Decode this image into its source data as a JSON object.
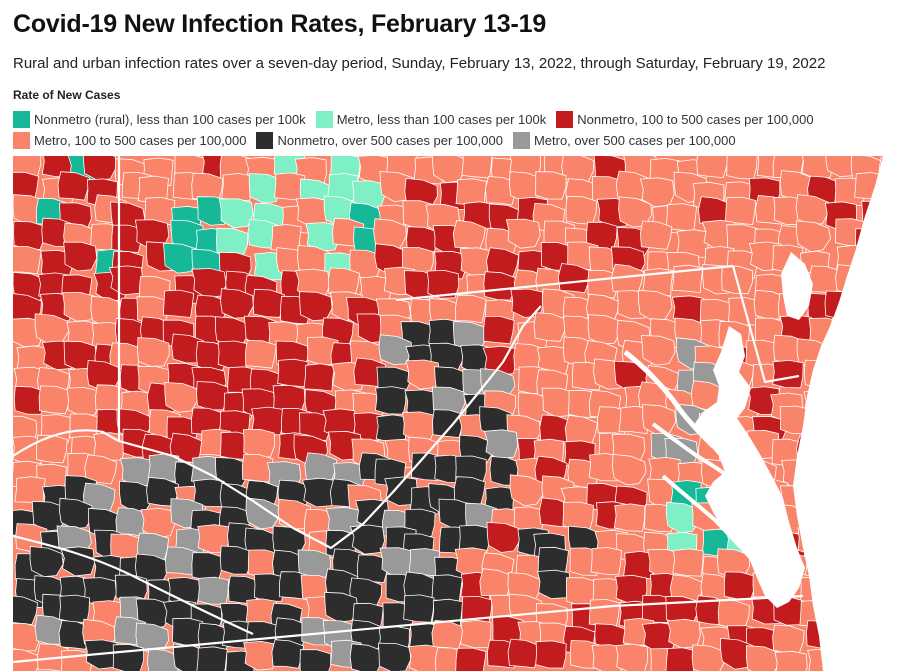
{
  "title": "Covid-19 New Infection Rates, February 13-19",
  "subtitle": "Rural and urban infection rates over a seven-day period, Sunday, February 13, 2022, through Saturday, February 19, 2022",
  "legend": {
    "title": "Rate of New Cases",
    "items": [
      {
        "label": "Nonmetro (rural), less than 100 cases per 100k",
        "color": "#17b897"
      },
      {
        "label": "Metro, less than 100 cases per 100k",
        "color": "#7ff0c6"
      },
      {
        "label": "Nonmetro, 100 to 500 cases per 100,000",
        "color": "#c21c1f"
      },
      {
        "label": "Metro, 100 to 500 cases per 100,000",
        "color": "#f9846a"
      },
      {
        "label": "Nonmetro, over 500 cases per 100,000",
        "color": "#2d2d2d"
      },
      {
        "label": "Metro, over 500 cases per 100,000",
        "color": "#999999"
      }
    ]
  },
  "map_colors": {
    "water": "#ffffff",
    "county_border": "#ffffff",
    "state_border": "#ffffff"
  }
}
